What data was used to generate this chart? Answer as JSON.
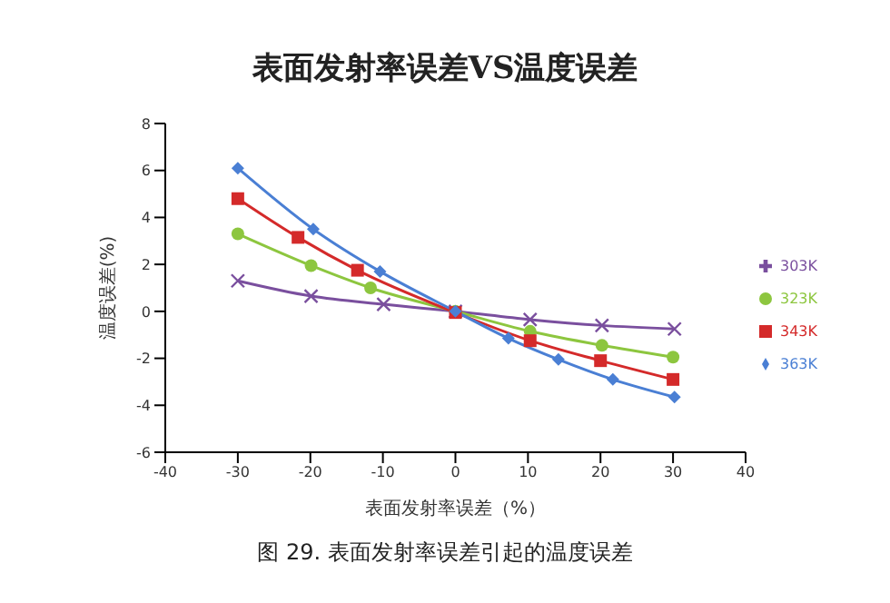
{
  "chart_data": {
    "type": "line",
    "title": "表面发射率误差VS温度误差",
    "xlabel": "表面发射率误差（%）",
    "ylabel": "温度误差(%)",
    "annotations": [
      "图 29. 表面发射率误差引起的温度误差"
    ],
    "xlim": [
      -40,
      40
    ],
    "xticks": [
      -40,
      -30,
      -20,
      -10,
      0,
      10,
      20,
      30,
      40
    ],
    "ylim": [
      -6,
      8
    ],
    "yticks": [
      -6,
      -4,
      -2,
      0,
      2,
      4,
      6,
      8
    ],
    "grid": false,
    "legend": "right",
    "series": [
      {
        "name": "363K",
        "color": "#4a7fd4",
        "marker": "diamond",
        "x": [
          -30,
          -19.6,
          -10.4,
          0,
          7.3,
          14.2,
          21.7,
          30.2
        ],
        "values": [
          6.1,
          3.5,
          1.7,
          0,
          -1.15,
          -2.05,
          -2.9,
          -3.65
        ]
      },
      {
        "name": "343K",
        "color": "#d42a2a",
        "marker": "square",
        "x": [
          -30,
          -21.7,
          -13.5,
          0,
          10.3,
          20,
          30
        ],
        "values": [
          4.8,
          3.15,
          1.75,
          -0.05,
          -1.25,
          -2.1,
          -2.9
        ]
      },
      {
        "name": "323K",
        "color": "#8dc63f",
        "marker": "circle",
        "x": [
          -30,
          -19.9,
          -11.7,
          0,
          10.3,
          20.2,
          30
        ],
        "values": [
          3.3,
          1.95,
          1.0,
          0,
          -0.85,
          -1.45,
          -1.95
        ]
      },
      {
        "name": "303K",
        "color": "#7a4f9e",
        "marker": "cross",
        "x": [
          -30,
          -19.9,
          -9.9,
          0,
          10.3,
          20.2,
          30.2
        ],
        "values": [
          1.3,
          0.65,
          0.3,
          0,
          -0.35,
          -0.6,
          -0.75
        ]
      }
    ]
  }
}
